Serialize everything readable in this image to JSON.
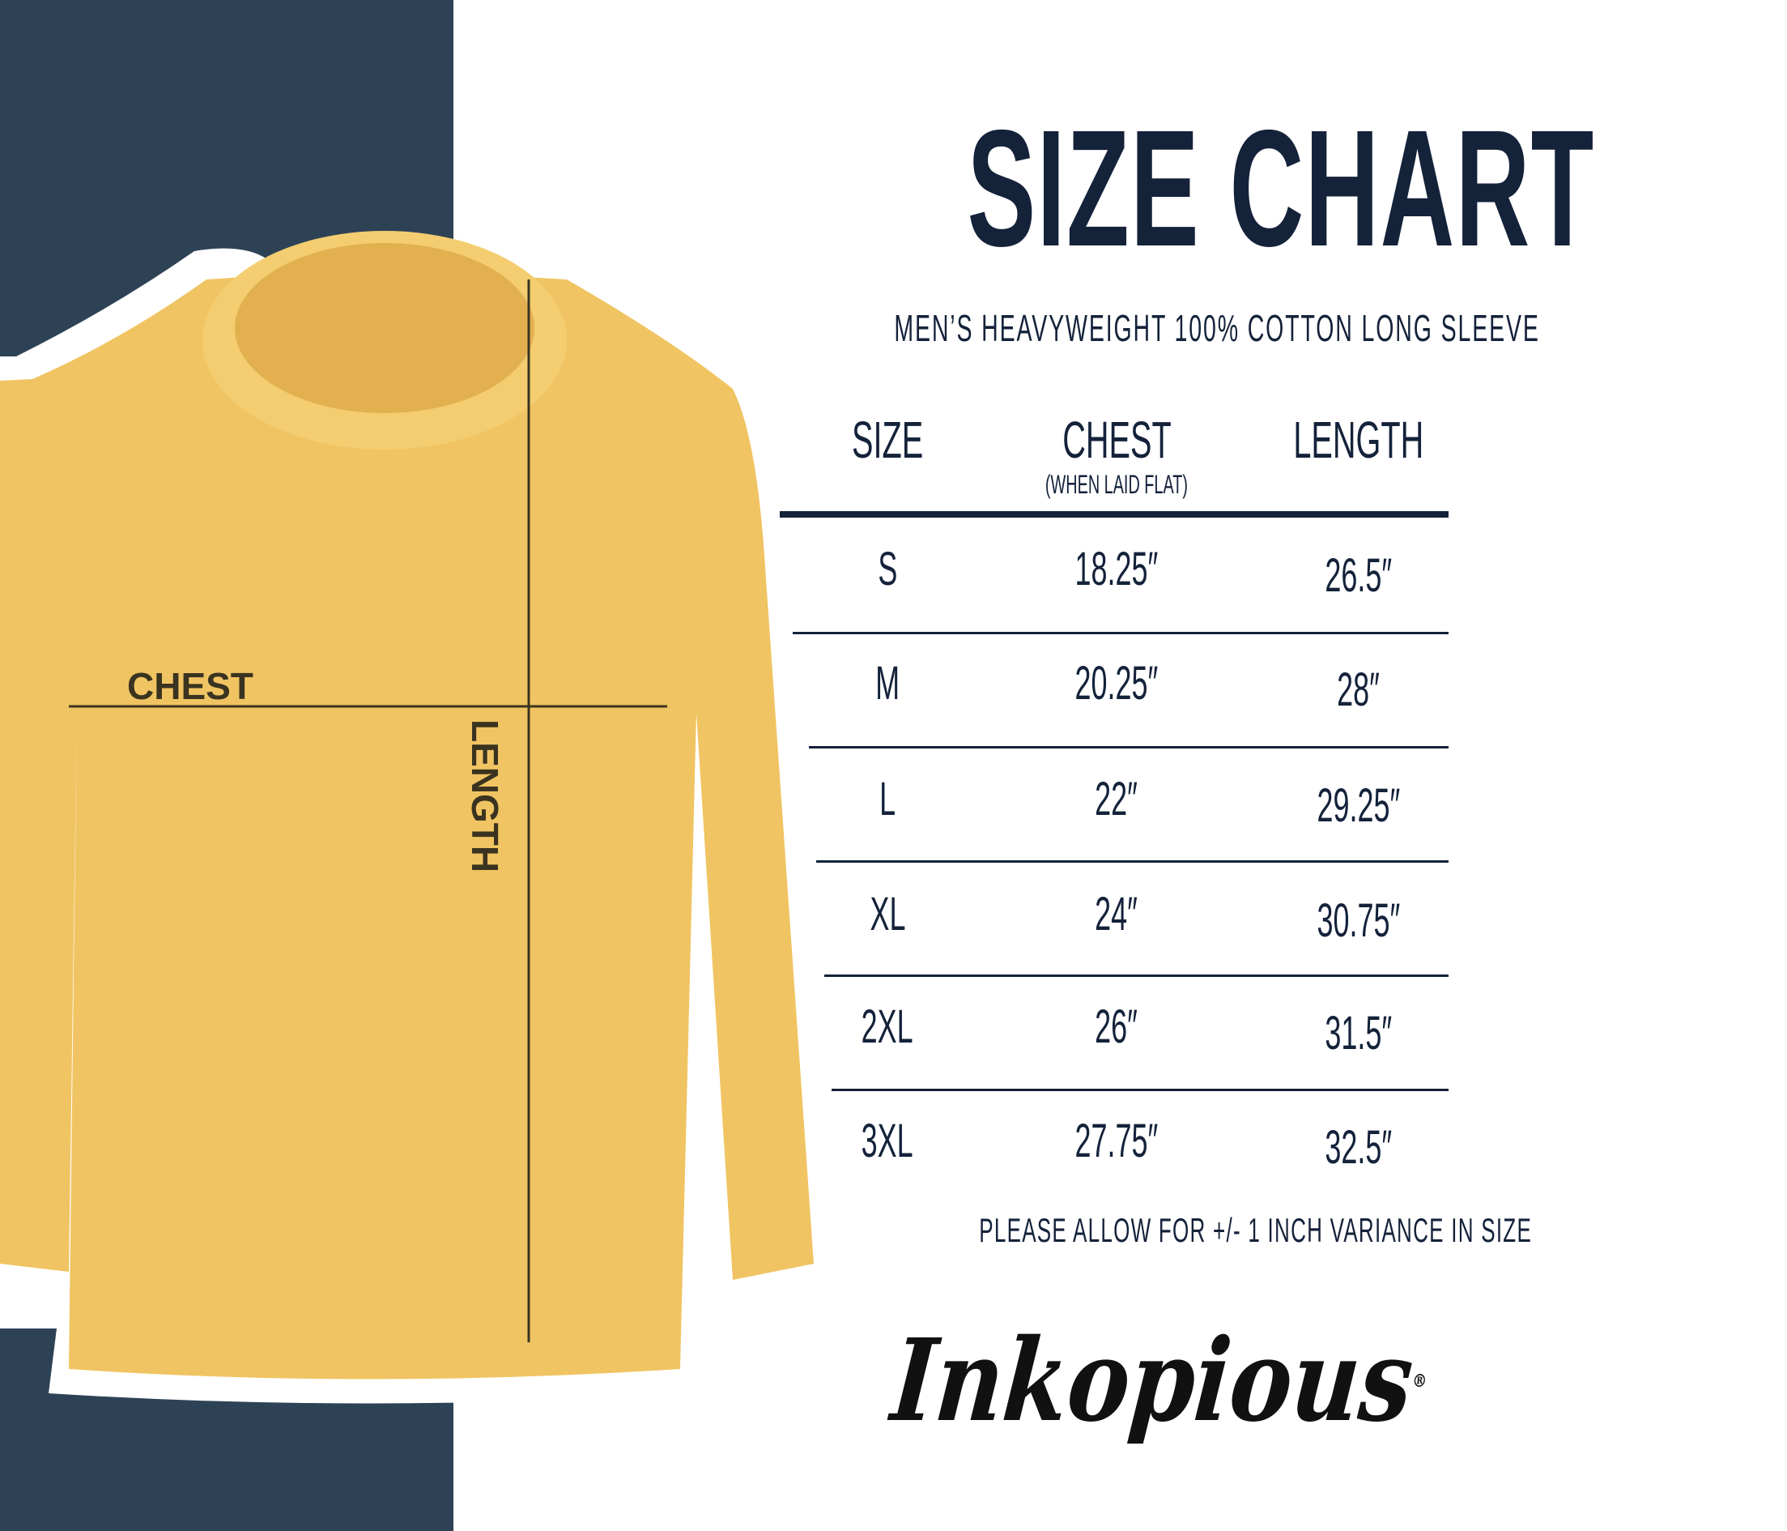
{
  "colors": {
    "navy_panel": "#2e4256",
    "text": "#14223a",
    "shirt": "#f0c462",
    "measure_line": "#3a3320"
  },
  "title": "SIZE CHART",
  "subtitle": "MEN’S HEAVYWEIGHT 100% COTTON LONG SLEEVE",
  "shirt_labels": {
    "chest": "CHEST",
    "length": "LENGTH"
  },
  "table": {
    "headers": {
      "size": "SIZE",
      "chest": "CHEST",
      "chest_note": "(WHEN LAID FLAT)",
      "length": "LENGTH"
    },
    "rows": [
      {
        "size": "S",
        "chest": "18.25″",
        "length": "26.5″"
      },
      {
        "size": "M",
        "chest": "20.25″",
        "length": "28″"
      },
      {
        "size": "L",
        "chest": "22″",
        "length": "29.25″"
      },
      {
        "size": "XL",
        "chest": "24″",
        "length": "30.75″"
      },
      {
        "size": "2XL",
        "chest": "26″",
        "length": "31.5″"
      },
      {
        "size": "3XL",
        "chest": "27.75″",
        "length": "32.5″"
      }
    ]
  },
  "note": "PLEASE ALLOW FOR +/- 1 INCH VARIANCE IN SIZE",
  "logo": {
    "text": "Inkopious",
    "mark": "®"
  }
}
